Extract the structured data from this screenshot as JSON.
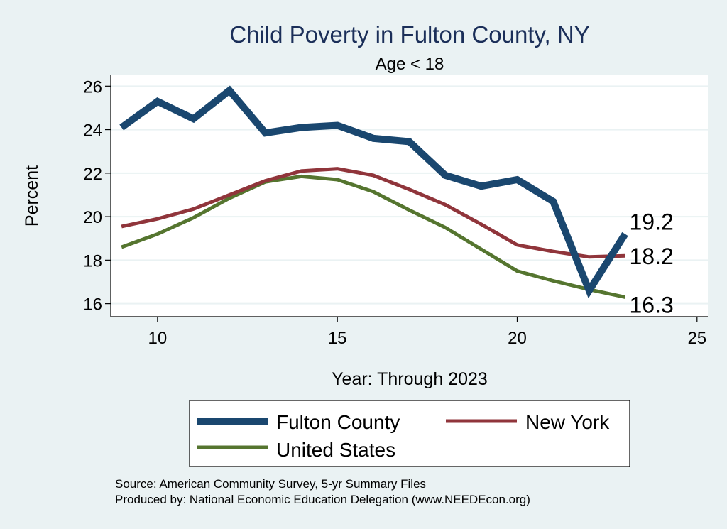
{
  "chart_data": {
    "type": "line",
    "title": "Child Poverty in Fulton County, NY",
    "subtitle": "Age < 18",
    "xlabel": "Year: Through 2023",
    "ylabel": "Percent",
    "xlim": [
      8.7,
      25.3
    ],
    "ylim": [
      15.4,
      26.5
    ],
    "xticks": [
      10,
      15,
      20,
      25
    ],
    "yticks": [
      16,
      18,
      20,
      22,
      24,
      26
    ],
    "x": [
      9,
      10,
      11,
      12,
      13,
      14,
      15,
      16,
      17,
      18,
      19,
      20,
      21,
      22,
      23
    ],
    "series": [
      {
        "name": "Fulton County",
        "color": "#1a476f",
        "values": [
          24.1,
          25.3,
          24.5,
          25.8,
          23.85,
          24.1,
          24.2,
          23.6,
          23.45,
          21.9,
          21.4,
          21.7,
          20.7,
          16.6,
          19.2
        ],
        "end_label": "19.2"
      },
      {
        "name": "New York",
        "color": "#90353b",
        "values": [
          19.55,
          19.9,
          20.35,
          21.0,
          21.65,
          22.1,
          22.2,
          21.9,
          21.25,
          20.55,
          19.65,
          18.7,
          18.4,
          18.15,
          18.2
        ],
        "end_label": "18.2"
      },
      {
        "name": "United States",
        "color": "#55752f",
        "values": [
          18.6,
          19.2,
          19.95,
          20.85,
          21.6,
          21.85,
          21.7,
          21.15,
          20.3,
          19.5,
          18.5,
          17.5,
          17.05,
          16.65,
          16.3
        ],
        "end_label": "16.3"
      }
    ],
    "legend": [
      "Fulton County",
      "New York",
      "United States"
    ],
    "legend_position": "bottom",
    "grid": true
  },
  "source_note": {
    "line1": "Source: American Community Survey, 5-yr Summary Files",
    "line2": "Produced by: National Economic Education Delegation (www.NEEDEcon.org)"
  }
}
